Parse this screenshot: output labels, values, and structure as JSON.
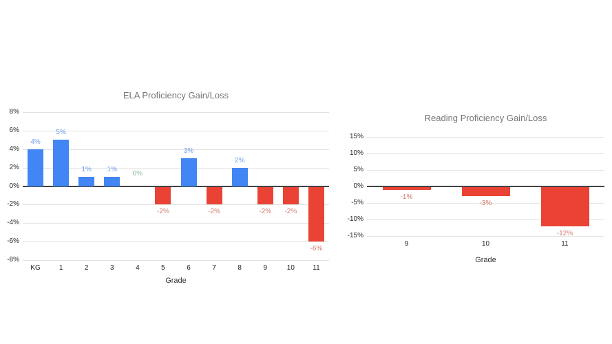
{
  "page": {
    "background": "#ffffff"
  },
  "chart_data": [
    {
      "type": "bar",
      "title": "ELA Proficiency Gain/Loss",
      "xlabel": "Grade",
      "ylabel": "",
      "categories": [
        "KG",
        "1",
        "2",
        "3",
        "4",
        "5",
        "6",
        "7",
        "8",
        "9",
        "10",
        "11"
      ],
      "values": [
        4,
        5,
        1,
        1,
        0,
        -2,
        3,
        -2,
        2,
        -2,
        -2,
        -6
      ],
      "value_labels": [
        "4%",
        "5%",
        "1%",
        "1%",
        "0%",
        "-2%",
        "3%",
        "-2%",
        "2%",
        "-2%",
        "-2%",
        "-6%"
      ],
      "ylim": [
        -8,
        8
      ],
      "ytick_step": 2,
      "ytick_labels": [
        "8%",
        "6%",
        "4%",
        "2%",
        "0%",
        "-2%",
        "-4%",
        "-6%",
        "-8%"
      ],
      "grid": true,
      "legend": "none"
    },
    {
      "type": "bar",
      "title": "Reading Proficiency Gain/Loss",
      "xlabel": "Grade",
      "ylabel": "",
      "categories": [
        "9",
        "10",
        "11"
      ],
      "values": [
        -1,
        -3,
        -12
      ],
      "value_labels": [
        "-1%",
        "-3%",
        "-12%"
      ],
      "ylim": [
        -15,
        15
      ],
      "ytick_step": 5,
      "ytick_labels": [
        "15%",
        "10%",
        "5%",
        "0%",
        "-5%",
        "-10%",
        "-15%"
      ],
      "grid": true,
      "legend": "none"
    }
  ],
  "colors": {
    "bar_positive": "#4285f4",
    "bar_negative": "#ea4335",
    "label_positive": "#6f9de8",
    "label_negative": "#d4776c",
    "label_zero": "#86bb97",
    "chart_title": "#757575",
    "axis_tick": "#1f1f1f",
    "axis_title": "#333333",
    "gridline": "#e2e2e2",
    "zero_line": "#424242"
  }
}
